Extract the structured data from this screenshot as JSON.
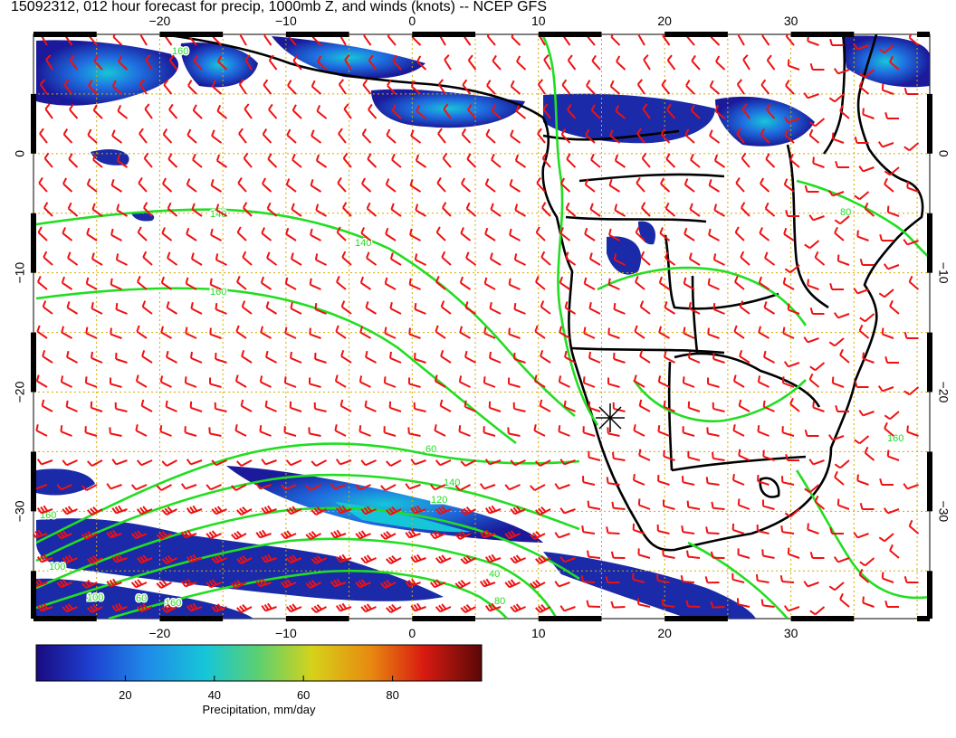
{
  "title": "15092312, 012 hour forecast for precip, 1000mb Z, and winds (knots) -- NCEP GFS",
  "map": {
    "lon_range": [
      -30,
      41
    ],
    "lat_range": [
      -39,
      10
    ],
    "x_ticks": [
      {
        "lon": -20,
        "label": "−20"
      },
      {
        "lon": -10,
        "label": "−10"
      },
      {
        "lon": 0,
        "label": "0"
      },
      {
        "lon": 10,
        "label": "10"
      },
      {
        "lon": 20,
        "label": "20"
      },
      {
        "lon": 30,
        "label": "30"
      }
    ],
    "y_ticks": [
      {
        "lat": 0,
        "label": "0"
      },
      {
        "lat": -10,
        "label": "−10"
      },
      {
        "lat": -20,
        "label": "−20"
      },
      {
        "lat": -30,
        "label": "−30"
      }
    ],
    "grid": true,
    "contour_labels": [
      "140",
      "140",
      "160",
      "60",
      "140",
      "120",
      "160",
      "100",
      "100",
      "160",
      "60",
      "80",
      "160",
      "160",
      "40",
      "80"
    ],
    "colors": {
      "land_outline": "#000000",
      "contour": "#22dd22",
      "wind_barb": "#ee1111",
      "grid": "#d4aa00"
    }
  },
  "colorbar": {
    "label": "Precipitation, mm/day",
    "ticks": [
      "20",
      "40",
      "60",
      "80"
    ],
    "min": 0,
    "max": 100
  }
}
